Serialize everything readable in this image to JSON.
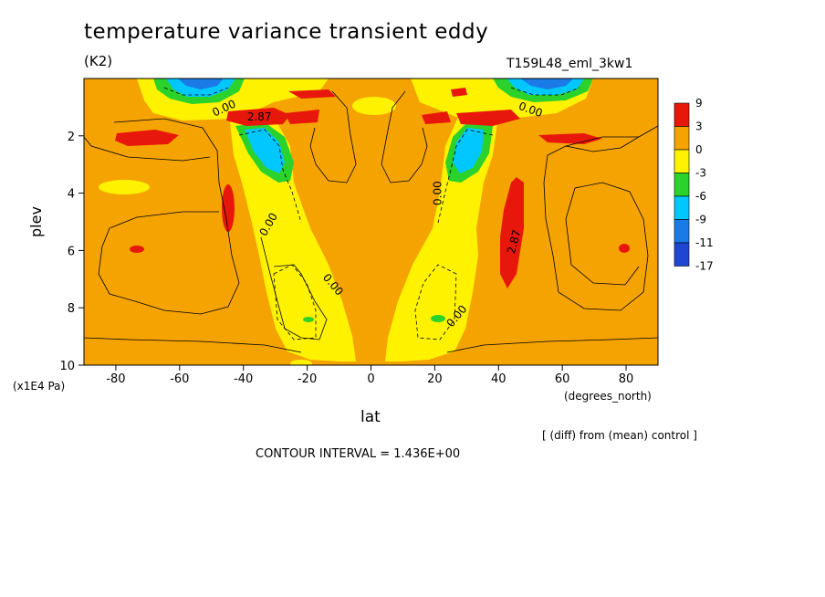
{
  "figure": {
    "title": "temperature variance transient eddy",
    "units": "(K2)",
    "run_id": "T159L48_eml_3kw1",
    "y_axis_label": "plev",
    "y_axis_units": "(x1E4 Pa)",
    "x_axis_label": "lat",
    "x_axis_units": "(degrees_north)",
    "diff_note": "[ (diff) from (mean) control ]",
    "contour_interval": "CONTOUR INTERVAL = 1.436E+00"
  },
  "colors": {
    "red": "#e8170b",
    "orange": "#f5a300",
    "yellow": "#fff200",
    "green": "#2bd22b",
    "cyan": "#00c8ff",
    "blue": "#1a7ae6",
    "dark_blue": "#1e46d2"
  },
  "chart_data": {
    "type": "heatmap",
    "subtype": "filled contour",
    "x": {
      "min": -90,
      "max": 90,
      "ticks": [
        -80,
        -60,
        -40,
        -20,
        0,
        20,
        40,
        60,
        80
      ],
      "tick_labels": [
        "-80",
        "-60",
        "-40",
        "-20",
        "0",
        "20",
        "40",
        "60",
        "80"
      ]
    },
    "y": {
      "min": 0,
      "max": 10,
      "inverted": true,
      "ticks": [
        2,
        4,
        6,
        8,
        10
      ],
      "tick_labels": [
        "2",
        "4",
        "6",
        "8",
        "10"
      ]
    },
    "legend": {
      "placement": "right",
      "levels": [
        "9",
        "3",
        "0",
        "-3",
        "-6",
        "-9",
        "-11",
        "-17"
      ],
      "colors": [
        "#e8170b",
        "#f5a300",
        "#fff200",
        "#2bd22b",
        "#00c8ff",
        "#1a7ae6",
        "#1e46d2"
      ]
    },
    "contour_labels": [
      {
        "text": "0.00",
        "lat": -46,
        "plev": 1.05,
        "angle": -25
      },
      {
        "text": "2.87",
        "lat": -35,
        "plev": 1.35,
        "angle": 0
      },
      {
        "text": "0.00",
        "lat": -32,
        "plev": 5.1,
        "angle": -60
      },
      {
        "text": "0.00",
        "lat": -12,
        "plev": 7.2,
        "angle": 50
      },
      {
        "text": "0.00",
        "lat": 50,
        "plev": 1.1,
        "angle": 20
      },
      {
        "text": "0.00",
        "lat": 21,
        "plev": 4.0,
        "angle": -90
      },
      {
        "text": "2.87",
        "lat": 45,
        "plev": 5.7,
        "angle": -75
      },
      {
        "text": "0.00",
        "lat": 27,
        "plev": 8.3,
        "angle": -50
      }
    ]
  }
}
